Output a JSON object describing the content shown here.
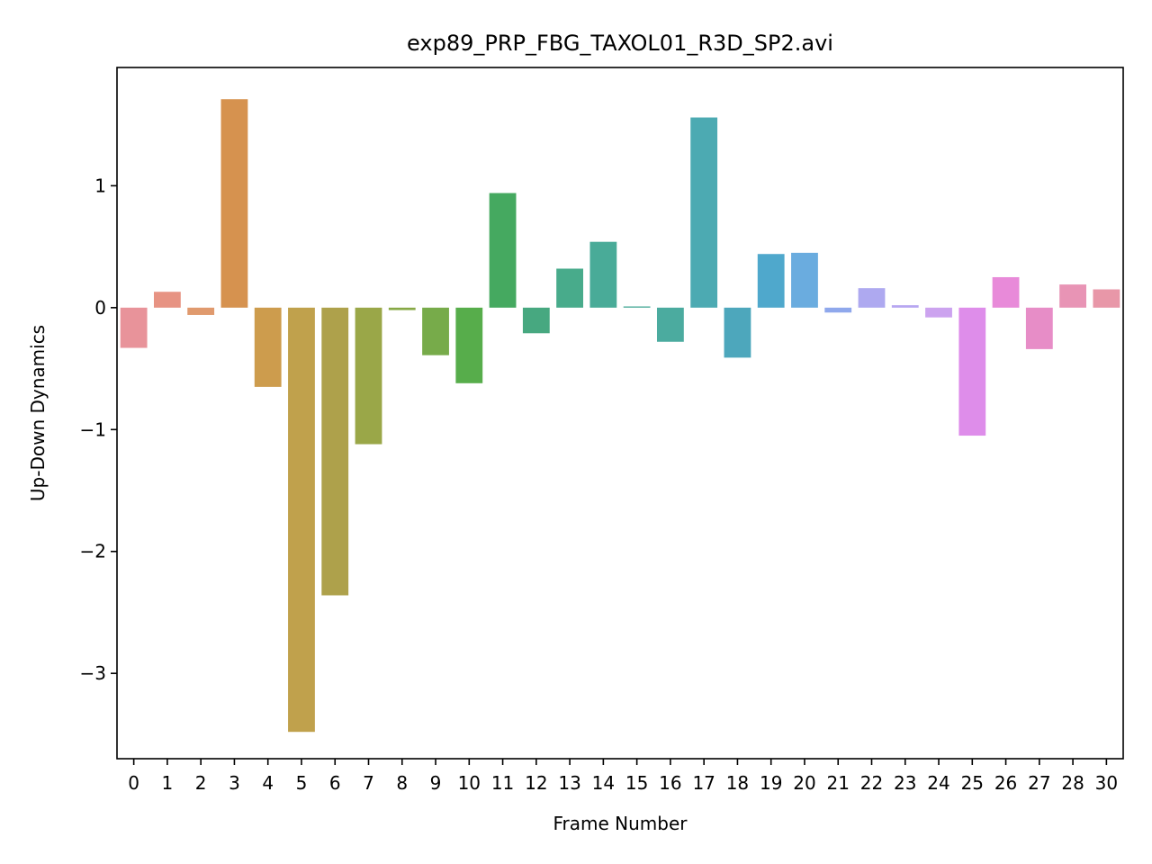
{
  "chart_data": {
    "type": "bar",
    "title": "exp89_PRP_FBG_TAXOL01_R3D_SP2.avi",
    "xlabel": "Frame Number",
    "ylabel": "Up-Down Dynamics",
    "categories": [
      "0",
      "1",
      "2",
      "3",
      "4",
      "5",
      "6",
      "7",
      "8",
      "9",
      "10",
      "11",
      "12",
      "13",
      "14",
      "15",
      "16",
      "17",
      "18",
      "19",
      "20",
      "21",
      "22",
      "23",
      "24",
      "25",
      "26",
      "27",
      "28",
      "30"
    ],
    "values": [
      -0.33,
      0.13,
      -0.06,
      1.71,
      -0.65,
      -3.48,
      -2.36,
      -1.12,
      -0.02,
      -0.39,
      -0.62,
      0.94,
      -0.21,
      0.32,
      0.54,
      0.01,
      -0.28,
      1.56,
      -0.41,
      0.44,
      0.45,
      -0.04,
      0.16,
      0.02,
      -0.08,
      -1.05,
      0.25,
      -0.34,
      0.19,
      0.15
    ],
    "colors": [
      "#e8939a",
      "#e79383",
      "#e09a6e",
      "#d6924f",
      "#cd9c4d",
      "#c0a14c",
      "#aea14b",
      "#9aa748",
      "#87a846",
      "#77ab4a",
      "#57ad4b",
      "#45a960",
      "#47a880",
      "#48ab8b",
      "#49ab98",
      "#4aab99",
      "#4bab9f",
      "#4caab2",
      "#4da7bc",
      "#4fa8cc",
      "#6aacdf",
      "#8fa8ec",
      "#aea9f0",
      "#b6a6f1",
      "#cca3ef",
      "#de8dea",
      "#e88ad9",
      "#e78dc7",
      "#e894b5",
      "#e897a8"
    ],
    "yticks": [
      1,
      0,
      -1,
      -2,
      -3
    ],
    "ytick_labels": [
      "1",
      "0",
      "−1",
      "−2",
      "−3"
    ],
    "ylim": [
      -3.7,
      1.97
    ],
    "grid": false
  }
}
